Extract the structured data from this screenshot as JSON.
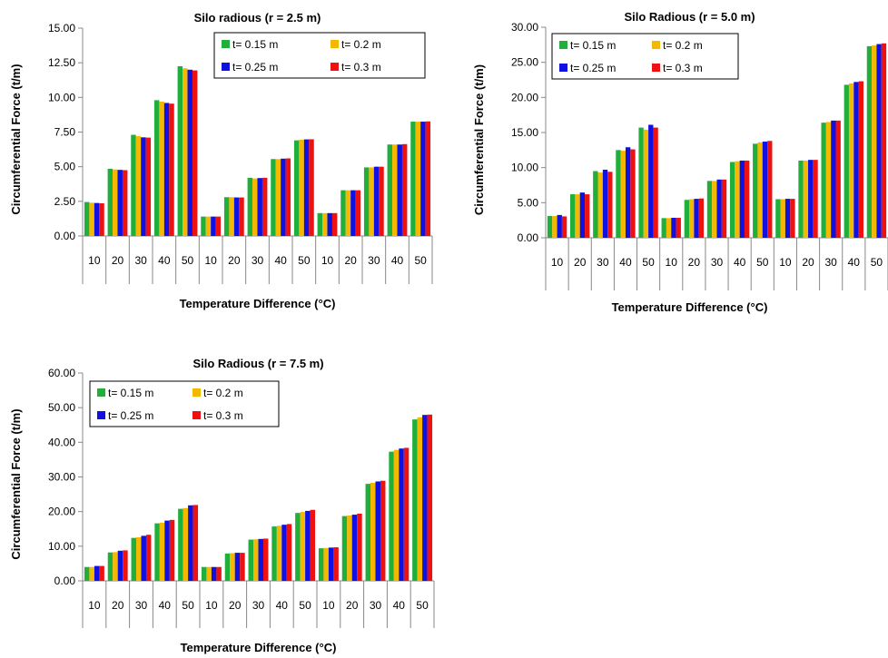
{
  "chart_data": [
    {
      "type": "bar",
      "title": "Silo radious (r = 2.5 m)",
      "xlabel": "Temperature Difference (°C)",
      "ylabel": "Circumferential Force (t/m)",
      "ylim": [
        0,
        15
      ],
      "ytick_step": 2.5,
      "ytick_labels": [
        "0.00",
        "2.50",
        "5.00",
        "7.50",
        "10.00",
        "12.50",
        "15.00"
      ],
      "categories": [
        "10",
        "20",
        "30",
        "40",
        "50",
        "10",
        "20",
        "30",
        "40",
        "50",
        "10",
        "20",
        "30",
        "40",
        "50"
      ],
      "legend": "top-right",
      "grid": false,
      "series": [
        {
          "name": "t= 0.15 m",
          "color": "#1FAF3A",
          "values": [
            2.45,
            4.85,
            7.3,
            9.8,
            12.25,
            1.4,
            2.8,
            4.2,
            5.55,
            6.9,
            1.65,
            3.3,
            4.95,
            6.6,
            8.25
          ]
        },
        {
          "name": "t= 0.2 m",
          "color": "#F5B800",
          "values": [
            2.4,
            4.8,
            7.2,
            9.7,
            12.1,
            1.4,
            2.8,
            4.15,
            5.55,
            6.95,
            1.65,
            3.3,
            4.95,
            6.6,
            8.25
          ]
        },
        {
          "name": "t= 0.25 m",
          "color": "#1010E0",
          "values": [
            2.38,
            4.77,
            7.12,
            9.6,
            12.0,
            1.4,
            2.78,
            4.18,
            5.58,
            6.97,
            1.65,
            3.3,
            5.0,
            6.6,
            8.25
          ]
        },
        {
          "name": "t= 0.3 m",
          "color": "#EE1111",
          "values": [
            2.36,
            4.75,
            7.1,
            9.55,
            11.95,
            1.4,
            2.78,
            4.2,
            5.6,
            6.98,
            1.65,
            3.3,
            5.0,
            6.63,
            8.27
          ]
        }
      ]
    },
    {
      "type": "bar",
      "title": "Silo Radious (r = 5.0 m)",
      "xlabel": "Temperature Difference (°C)",
      "ylabel": "Circumferential Force (t/m)",
      "ylim": [
        0,
        30
      ],
      "ytick_step": 5,
      "ytick_labels": [
        "0.00",
        "5.00",
        "10.00",
        "15.00",
        "20.00",
        "25.00",
        "30.00"
      ],
      "categories": [
        "10",
        "20",
        "30",
        "40",
        "50",
        "10",
        "20",
        "30",
        "40",
        "50",
        "10",
        "20",
        "30",
        "40",
        "50"
      ],
      "legend": "top-left",
      "grid": false,
      "series": [
        {
          "name": "t= 0.15 m",
          "color": "#1FAF3A",
          "values": [
            3.1,
            6.2,
            9.5,
            12.5,
            15.7,
            2.8,
            5.4,
            8.1,
            10.8,
            13.4,
            5.5,
            11.0,
            16.4,
            21.8,
            27.3
          ]
        },
        {
          "name": "t= 0.2 m",
          "color": "#F5B800",
          "values": [
            3.1,
            6.2,
            9.3,
            12.4,
            15.4,
            2.8,
            5.5,
            8.1,
            10.9,
            13.6,
            5.5,
            11.0,
            16.5,
            22.0,
            27.4
          ]
        },
        {
          "name": "t= 0.25 m",
          "color": "#1010E0",
          "values": [
            3.25,
            6.45,
            9.7,
            12.9,
            16.1,
            2.85,
            5.55,
            8.3,
            11.0,
            13.7,
            5.55,
            11.1,
            16.7,
            22.2,
            27.6
          ]
        },
        {
          "name": "t= 0.3 m",
          "color": "#EE1111",
          "values": [
            3.05,
            6.2,
            9.4,
            12.6,
            15.7,
            2.85,
            5.6,
            8.3,
            11.0,
            13.8,
            5.55,
            11.1,
            16.7,
            22.3,
            27.7
          ]
        }
      ]
    },
    {
      "type": "bar",
      "title": "Silo Radious (r = 7.5 m)",
      "xlabel": "Temperature Difference (°C)",
      "ylabel": "Circumferential Force (t/m)",
      "ylim": [
        0,
        60
      ],
      "ytick_step": 10,
      "ytick_labels": [
        "0.00",
        "10.00",
        "20.00",
        "30.00",
        "40.00",
        "50.00",
        "60.00"
      ],
      "categories": [
        "10",
        "20",
        "30",
        "40",
        "50",
        "10",
        "20",
        "30",
        "40",
        "50",
        "10",
        "20",
        "30",
        "40",
        "50"
      ],
      "legend": "top-left",
      "grid": false,
      "series": [
        {
          "name": "t= 0.15 m",
          "color": "#1FAF3A",
          "values": [
            4.0,
            8.2,
            12.4,
            16.6,
            20.8,
            4.0,
            7.9,
            11.9,
            15.7,
            19.6,
            9.4,
            18.7,
            28.0,
            37.3,
            46.6
          ]
        },
        {
          "name": "t= 0.2 m",
          "color": "#F5B800",
          "values": [
            4.0,
            8.3,
            12.6,
            16.8,
            21.0,
            4.0,
            8.0,
            12.0,
            15.9,
            19.9,
            9.5,
            18.9,
            28.3,
            37.8,
            47.2
          ]
        },
        {
          "name": "t= 0.25 m",
          "color": "#1010E0",
          "values": [
            4.3,
            8.7,
            13.0,
            17.4,
            21.8,
            4.0,
            8.1,
            12.1,
            16.2,
            20.2,
            9.6,
            19.1,
            28.7,
            38.2,
            47.9
          ]
        },
        {
          "name": "t= 0.3 m",
          "color": "#EE1111",
          "values": [
            4.3,
            8.8,
            13.3,
            17.6,
            21.9,
            4.0,
            8.1,
            12.2,
            16.4,
            20.5,
            9.7,
            19.4,
            28.9,
            38.4,
            48.0
          ]
        }
      ]
    }
  ]
}
